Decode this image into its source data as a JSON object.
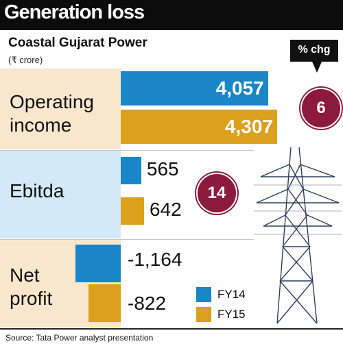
{
  "header": {
    "title": "Generation loss"
  },
  "subtitle": "Coastal Gujarat Power",
  "unit": "(₹ crore)",
  "pct_label": "% chg",
  "source": "Source: Tata Power analyst presentation",
  "colors": {
    "fy14": "#1a86c7",
    "fy15": "#dba11c",
    "badge": "#8b1a3c",
    "band_beige": "#f8e7cd",
    "band_blue": "#d3e9f6"
  },
  "chart_data": {
    "type": "bar",
    "orientation": "horizontal",
    "categories": [
      "Operating income",
      "Ebitda",
      "Net profit"
    ],
    "category_lines": [
      [
        "Operating",
        "income"
      ],
      [
        "Ebitda"
      ],
      [
        "Net",
        "profit"
      ]
    ],
    "series": [
      {
        "name": "FY14",
        "values": [
          4057,
          565,
          -1164
        ],
        "labels": [
          "4,057",
          "565",
          "-1,164"
        ]
      },
      {
        "name": "FY15",
        "values": [
          4307,
          642,
          -822
        ],
        "labels": [
          "4,307",
          "642",
          "-822"
        ]
      }
    ],
    "pct_change": [
      "6",
      "14",
      ""
    ],
    "legend": [
      "FY14",
      "FY15"
    ]
  }
}
